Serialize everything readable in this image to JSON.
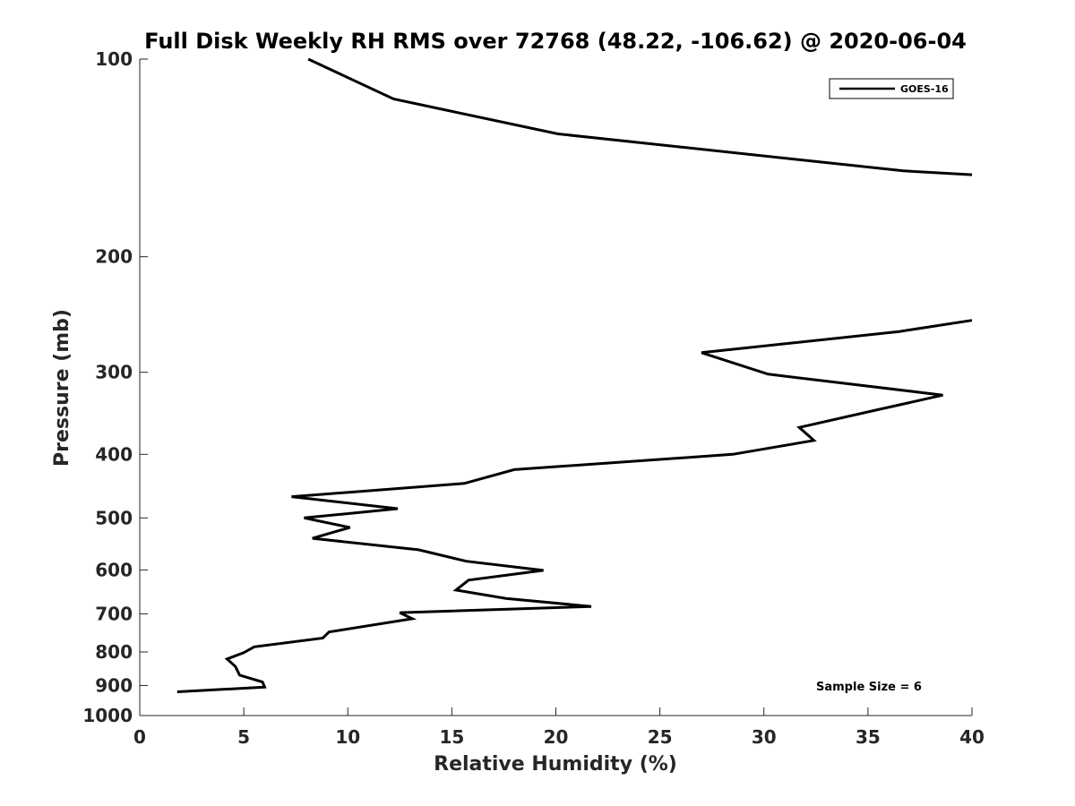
{
  "chart_data": {
    "type": "line",
    "title": "Full Disk Weekly RH RMS over 72768 (48.22, -106.62) @ 2020-06-04",
    "xlabel": "Relative Humidity (%)",
    "ylabel": "Pressure (mb)",
    "xlim": [
      0,
      40
    ],
    "ylim": [
      100,
      1000
    ],
    "y_scale": "log",
    "y_reversed": true,
    "x_ticks": [
      "0",
      "5",
      "10",
      "15",
      "20",
      "25",
      "30",
      "35",
      "40"
    ],
    "y_ticks": [
      "100",
      "200",
      "300",
      "400",
      "500",
      "600",
      "700",
      "800",
      "900",
      "1000"
    ],
    "grid": false,
    "legend_position": "top-right",
    "line_color": "#000000",
    "series": [
      {
        "name": "GOES-16",
        "x": [
          8.1,
          12.2,
          20.1,
          36.7,
          40.0
        ],
        "y": [
          100,
          115,
          130,
          148,
          150
        ]
      },
      {
        "name": "GOES-16",
        "x": [
          40.0,
          36.5,
          27.0,
          30.2,
          38.6,
          35.3,
          31.7,
          32.4,
          28.5,
          18.0,
          15.6,
          7.3,
          12.4,
          7.9,
          10.1,
          8.3,
          13.4,
          15.7,
          19.4,
          15.8,
          15.2,
          17.6,
          21.7,
          12.5,
          13.1,
          9.1,
          8.8,
          5.5,
          5.0,
          4.2,
          4.6,
          4.8,
          5.9,
          6.0,
          1.8
        ],
        "y": [
          250,
          260,
          280,
          302,
          325,
          343,
          364,
          381,
          400,
          422,
          443,
          464,
          484,
          500,
          517,
          537,
          559,
          582,
          601,
          622,
          644,
          663,
          682,
          697,
          712,
          746,
          762,
          786,
          802,
          820,
          842,
          868,
          889,
          905,
          920
        ]
      }
    ],
    "legend": [
      "GOES-16"
    ],
    "annotation": "Sample Size = 6"
  }
}
